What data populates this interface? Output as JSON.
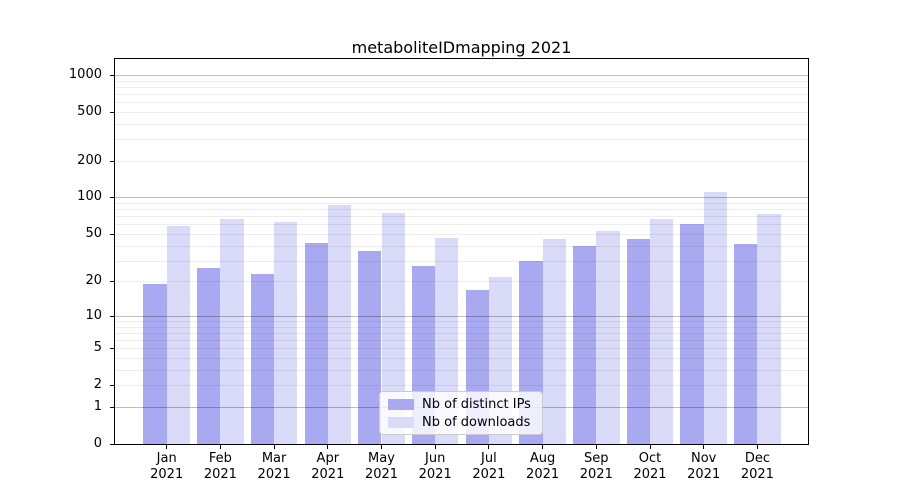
{
  "chart_data": {
    "type": "bar",
    "title": "metaboliteIDmapping 2021",
    "categories": [
      "Jan",
      "Feb",
      "Mar",
      "Apr",
      "May",
      "Jun",
      "Jul",
      "Aug",
      "Sep",
      "Oct",
      "Nov",
      "Dec"
    ],
    "year_label": "2021",
    "series": [
      {
        "name": "Nb of distinct IPs",
        "color": "#a9a9f2",
        "values": [
          19,
          26,
          23,
          42,
          36,
          27,
          17,
          30,
          40,
          45,
          60,
          41
        ]
      },
      {
        "name": "Nb of downloads",
        "color": "#dadaf9",
        "values": [
          58,
          67,
          63,
          87,
          75,
          46,
          22,
          45,
          53,
          67,
          110,
          73
        ]
      }
    ],
    "yticks": [
      0,
      1,
      2,
      5,
      10,
      20,
      50,
      100,
      200,
      500,
      1000
    ],
    "yscale": "log1p",
    "ylim": [
      0,
      1380
    ],
    "xlabel": "",
    "ylabel": "",
    "grid": "major powers of 10 dark, log minors light, drawn over bars",
    "legend_position": "lower center"
  }
}
